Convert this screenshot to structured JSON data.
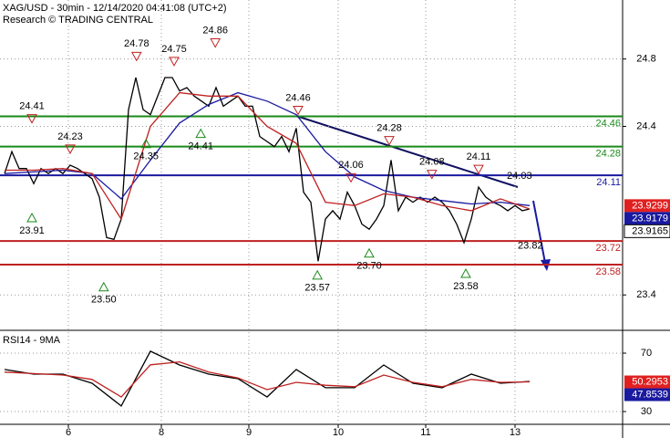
{
  "chart_data": {
    "type": "line",
    "title": "XAG/USD - 30min - 12/14/2020 04:41:08 (UTC+2)",
    "subtitle": "Research © TRADING CENTRAL",
    "xlim": [
      -0.625,
      84.75
    ],
    "xticks": [
      {
        "value": 8.75,
        "label": "6"
      },
      {
        "value": 21.5,
        "label": "8"
      },
      {
        "value": 33.5,
        "label": "9"
      },
      {
        "value": 45.75,
        "label": "10"
      },
      {
        "value": 57.75,
        "label": "11"
      },
      {
        "value": 70,
        "label": "13"
      }
    ],
    "ylim": [
      23.19,
      25.15
    ],
    "yticks": [
      23.4,
      24.4,
      24.8
    ],
    "grid": true,
    "series": [
      {
        "color": "#000000",
        "x": [
          0,
          1,
          2,
          3,
          4,
          5,
          6,
          7,
          8,
          9,
          10,
          11,
          12,
          13,
          14,
          15,
          16,
          17,
          18,
          19,
          20,
          21,
          22,
          23,
          24,
          25,
          26,
          27,
          28,
          29,
          30,
          31,
          32,
          33,
          34,
          35,
          36,
          37,
          38,
          39,
          40,
          41,
          42,
          43,
          44,
          45,
          46,
          47,
          48,
          49,
          50,
          51,
          52,
          53,
          54,
          55,
          56,
          57,
          58,
          59,
          60,
          61,
          62,
          63,
          64,
          65,
          66,
          67,
          68,
          69,
          70,
          71,
          72
        ],
        "values": [
          24.12,
          24.25,
          24.15,
          24.15,
          24.06,
          24.15,
          24.12,
          24.15,
          24.12,
          24.17,
          24.15,
          24.12,
          24.09,
          23.98,
          23.74,
          23.73,
          23.85,
          24.5,
          24.69,
          24.5,
          24.47,
          24.58,
          24.69,
          24.69,
          24.61,
          24.63,
          24.58,
          24.55,
          24.52,
          24.63,
          24.52,
          24.55,
          24.58,
          24.52,
          24.52,
          24.34,
          24.31,
          24.28,
          24.34,
          24.25,
          24.39,
          24.01,
          23.95,
          23.6,
          23.85,
          23.9,
          23.85,
          24.01,
          23.93,
          23.82,
          23.79,
          23.85,
          23.93,
          24.2,
          23.9,
          23.98,
          23.95,
          23.98,
          23.95,
          23.98,
          23.95,
          23.9,
          23.82,
          23.71,
          23.85,
          24.04,
          23.98,
          23.95,
          23.93,
          23.9,
          23.93,
          23.9,
          23.91
        ]
      },
      {
        "color": "#1a1aa0",
        "x": [
          0,
          4,
          8,
          12,
          16,
          20,
          24,
          28,
          32,
          36,
          40,
          44,
          48,
          52,
          56,
          60,
          64,
          68,
          72
        ],
        "values": [
          24.12,
          24.13,
          24.14,
          24.12,
          23.97,
          24.2,
          24.42,
          24.53,
          24.6,
          24.55,
          24.47,
          24.25,
          24.1,
          24.02,
          23.98,
          23.96,
          23.94,
          23.95,
          23.93
        ]
      },
      {
        "color": "#c02020",
        "x": [
          0,
          4,
          8,
          12,
          16,
          20,
          24,
          28,
          32,
          36,
          40,
          44,
          48,
          52,
          56,
          60,
          64,
          68,
          72
        ],
        "values": [
          24.14,
          24.14,
          24.15,
          24.12,
          23.85,
          24.4,
          24.6,
          24.58,
          24.58,
          24.4,
          24.3,
          23.95,
          23.93,
          24.0,
          23.98,
          23.93,
          23.9,
          23.97,
          23.91
        ]
      }
    ],
    "levels": [
      {
        "value": 24.46,
        "color": "#1a8a1a"
      },
      {
        "value": 24.28,
        "color": "#1a8a1a"
      },
      {
        "value": 24.11,
        "color": "#1a1aa0"
      },
      {
        "value": 23.72,
        "color": "#c02020"
      },
      {
        "value": 23.58,
        "color": "#c02020"
      }
    ],
    "annotations": [
      {
        "x": 3.75,
        "value": 24.41,
        "kind": "high"
      },
      {
        "x": 3.75,
        "value": 23.91,
        "kind": "low"
      },
      {
        "x": 9,
        "value": 24.23,
        "kind": "high"
      },
      {
        "x": 13.6,
        "value": 23.5,
        "label": "23.50",
        "kind": "low"
      },
      {
        "x": 18.1,
        "value": 24.78,
        "kind": "high"
      },
      {
        "x": 19.4,
        "value": 24.35,
        "kind": "low"
      },
      {
        "x": 23.25,
        "value": 24.75,
        "kind": "high"
      },
      {
        "x": 28.9,
        "value": 24.86,
        "kind": "high"
      },
      {
        "x": 26.9,
        "value": 24.41,
        "kind": "low"
      },
      {
        "x": 40.25,
        "value": 24.46,
        "kind": "high"
      },
      {
        "x": 42.9,
        "value": 23.57,
        "kind": "low"
      },
      {
        "x": 47.5,
        "value": 24.06,
        "kind": "high"
      },
      {
        "x": 50,
        "value": 23.7,
        "label": "23.70",
        "kind": "low"
      },
      {
        "x": 52.75,
        "value": 24.28,
        "kind": "high"
      },
      {
        "x": 58.6,
        "value": 24.08,
        "kind": "high"
      },
      {
        "x": 63.25,
        "value": 23.58,
        "kind": "low"
      },
      {
        "x": 65,
        "value": 24.11,
        "kind": "high"
      },
      {
        "x": 70.6,
        "value": 24.03,
        "kind": "pivot"
      },
      {
        "x": 72.1,
        "value": 23.82,
        "kind": "target"
      }
    ],
    "price_tags": [
      {
        "value": 23.9299,
        "color": "#e02020"
      },
      {
        "value": 23.9179,
        "color": "#1a1aa0"
      },
      {
        "value": 23.9165,
        "color": "#ffffff"
      }
    ],
    "rsi": {
      "title": "RSI14 - 9MA",
      "ylim": [
        21.25,
        85
      ],
      "yticks": [
        30,
        70
      ],
      "series": [
        {
          "color": "#000000",
          "x": [
            0,
            4,
            8,
            12,
            16,
            20,
            24,
            28,
            32,
            36,
            40,
            44,
            48,
            52,
            56,
            60,
            64,
            68,
            72
          ],
          "values": [
            58.8,
            55.6,
            55.6,
            49.4,
            33.8,
            71.3,
            61.9,
            55.6,
            52.5,
            40,
            58.8,
            46.3,
            46.3,
            61.9,
            49.4,
            46.3,
            55.6,
            49.4,
            50.6
          ]
        },
        {
          "color": "#c02020",
          "x": [
            0,
            4,
            8,
            12,
            16,
            20,
            24,
            28,
            32,
            36,
            40,
            44,
            48,
            52,
            56,
            60,
            64,
            68,
            72
          ],
          "values": [
            57,
            56,
            55,
            52,
            40,
            62,
            64,
            57,
            53,
            45,
            50,
            48,
            47,
            55,
            50,
            47,
            52,
            50,
            50.3
          ]
        }
      ],
      "tags": [
        {
          "value": 50.2953,
          "color": "#e02020"
        },
        {
          "value": 47.8539,
          "color": "#1a1aa0"
        }
      ]
    }
  }
}
